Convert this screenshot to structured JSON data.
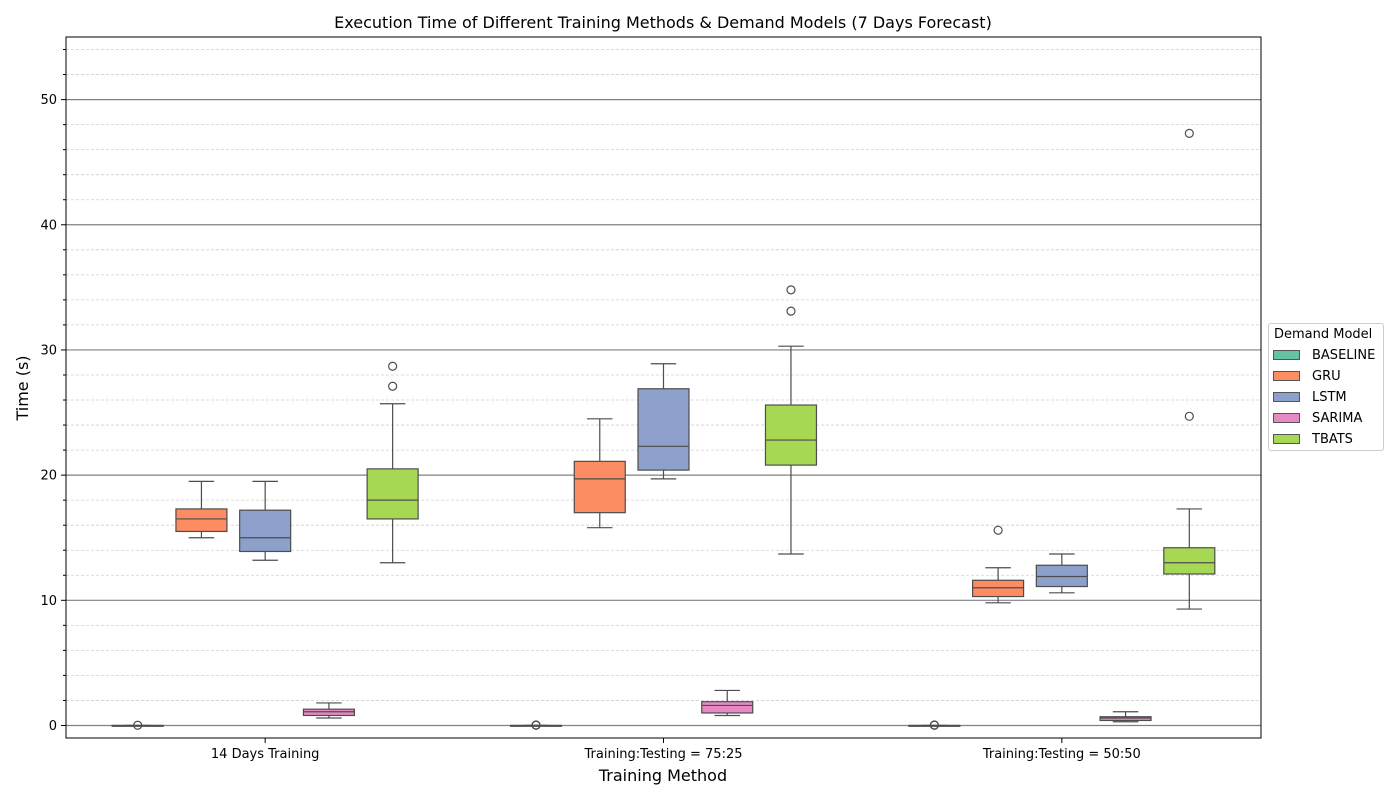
{
  "chart_data": {
    "type": "boxplot",
    "title": "Execution Time of Different Training Methods & Demand Models (7 Days Forecast)",
    "xlabel": "Training Method",
    "ylabel": "Time (s)",
    "ylim": [
      -1,
      55
    ],
    "yticks": [
      0,
      10,
      20,
      30,
      40,
      50
    ],
    "grid": {
      "major": true,
      "minor": true,
      "minor_step": 2
    },
    "categories": [
      "14 Days Training",
      "Training:Testing = 75:25",
      "Training:Testing = 50:50"
    ],
    "legend": {
      "title": "Demand Model",
      "placement": "center-right outside"
    },
    "series": [
      {
        "name": "BASELINE",
        "color": "#66c2a5",
        "boxes": [
          {
            "whisker_low": 0.0,
            "q1": 0.0,
            "median": 0.0,
            "q3": 0.0,
            "whisker_high": 0.0,
            "outliers": [
              0.02
            ]
          },
          {
            "whisker_low": 0.0,
            "q1": 0.0,
            "median": 0.0,
            "q3": 0.0,
            "whisker_high": 0.0,
            "outliers": [
              0.02,
              0.04
            ]
          },
          {
            "whisker_low": 0.0,
            "q1": 0.0,
            "median": 0.0,
            "q3": 0.0,
            "whisker_high": 0.0,
            "outliers": [
              0.02,
              0.04
            ]
          }
        ]
      },
      {
        "name": "GRU",
        "color": "#fc8d62",
        "boxes": [
          {
            "whisker_low": 15.0,
            "q1": 15.5,
            "median": 16.5,
            "q3": 17.3,
            "whisker_high": 19.5,
            "outliers": []
          },
          {
            "whisker_low": 15.8,
            "q1": 17.0,
            "median": 19.7,
            "q3": 21.1,
            "whisker_high": 24.5,
            "outliers": []
          },
          {
            "whisker_low": 9.8,
            "q1": 10.3,
            "median": 11.0,
            "q3": 11.6,
            "whisker_high": 12.6,
            "outliers": [
              15.6
            ]
          }
        ]
      },
      {
        "name": "LSTM",
        "color": "#8da0cb",
        "boxes": [
          {
            "whisker_low": 13.2,
            "q1": 13.9,
            "median": 15.0,
            "q3": 17.2,
            "whisker_high": 19.5,
            "outliers": []
          },
          {
            "whisker_low": 19.7,
            "q1": 20.4,
            "median": 22.3,
            "q3": 26.9,
            "whisker_high": 28.9,
            "outliers": []
          },
          {
            "whisker_low": 10.6,
            "q1": 11.1,
            "median": 11.9,
            "q3": 12.8,
            "whisker_high": 13.7,
            "outliers": []
          }
        ]
      },
      {
        "name": "SARIMA",
        "color": "#e78ac3",
        "boxes": [
          {
            "whisker_low": 0.6,
            "q1": 0.8,
            "median": 1.1,
            "q3": 1.3,
            "whisker_high": 1.8,
            "outliers": []
          },
          {
            "whisker_low": 0.8,
            "q1": 1.0,
            "median": 1.6,
            "q3": 1.9,
            "whisker_high": 2.8,
            "outliers": []
          },
          {
            "whisker_low": 0.3,
            "q1": 0.4,
            "median": 0.6,
            "q3": 0.7,
            "whisker_high": 1.1,
            "outliers": []
          }
        ]
      },
      {
        "name": "TBATS",
        "color": "#a6d854",
        "boxes": [
          {
            "whisker_low": 13.0,
            "q1": 16.5,
            "median": 18.0,
            "q3": 20.5,
            "whisker_high": 25.7,
            "outliers": [
              27.1,
              28.7
            ]
          },
          {
            "whisker_low": 13.7,
            "q1": 20.8,
            "median": 22.8,
            "q3": 25.6,
            "whisker_high": 30.3,
            "outliers": [
              33.1,
              34.8
            ]
          },
          {
            "whisker_low": 9.3,
            "q1": 12.1,
            "median": 13.0,
            "q3": 14.2,
            "whisker_high": 17.3,
            "outliers": [
              24.7,
              47.3
            ]
          }
        ]
      }
    ]
  }
}
